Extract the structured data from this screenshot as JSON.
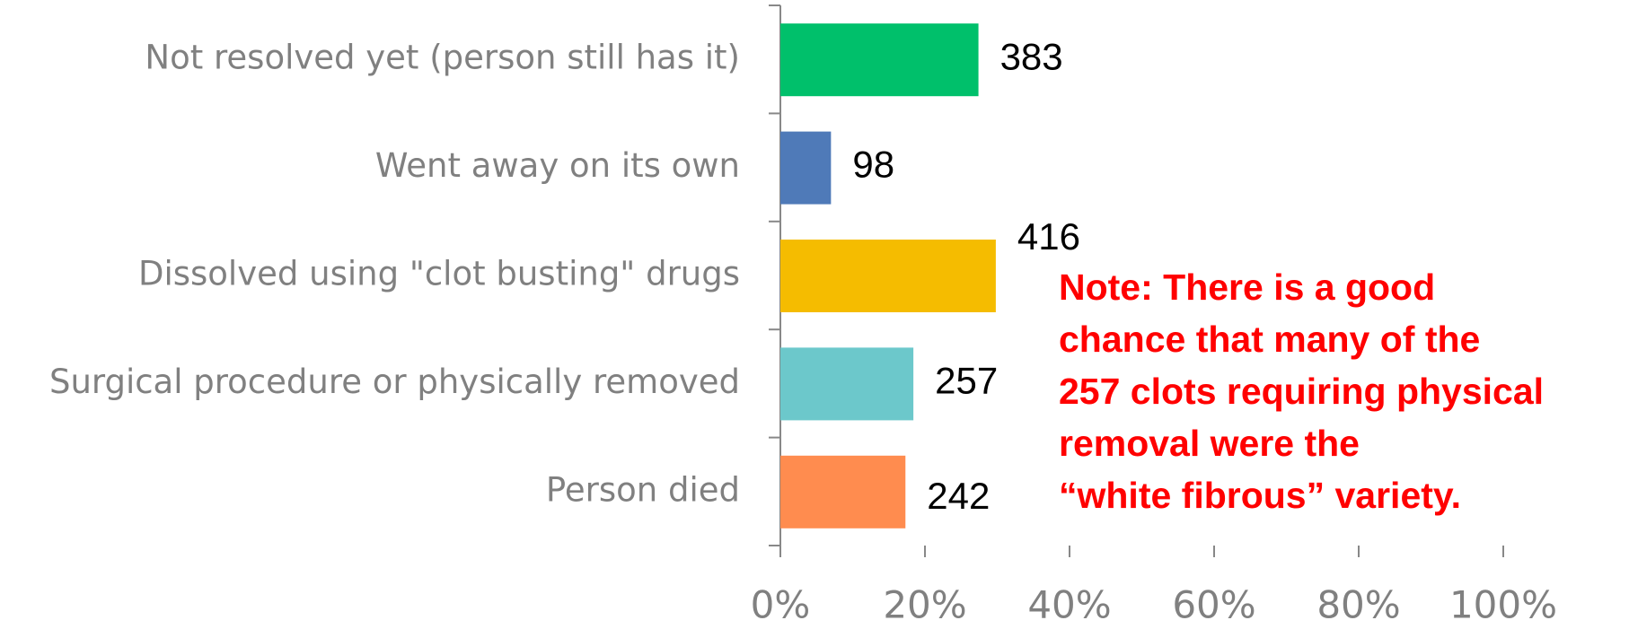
{
  "chart_data": {
    "type": "bar",
    "orientation": "horizontal",
    "categories": [
      "Not resolved yet (person still has it)",
      "Went away on its own",
      "Dissolved using \"clot busting\" drugs",
      "Surgical procedure or physically removed",
      "Person died"
    ],
    "values": [
      27.4,
      7.0,
      29.8,
      18.4,
      17.3
    ],
    "data_labels": [
      383,
      98,
      416,
      257,
      242
    ],
    "colors": [
      "#00c06b",
      "#4f7ab8",
      "#f5bc00",
      "#6cc8cb",
      "#ff8c4f"
    ],
    "xlim": [
      0,
      100
    ],
    "xticks": [
      {
        "value": 0,
        "label": "0%"
      },
      {
        "value": 20,
        "label": "20%"
      },
      {
        "value": 40,
        "label": "40%"
      },
      {
        "value": 60,
        "label": "60%"
      },
      {
        "value": 80,
        "label": "80%"
      },
      {
        "value": 100,
        "label": "100%"
      }
    ],
    "annotation": [
      "Note:  There is a good",
      "chance that many of the",
      "257 clots requiring physical",
      "removal were the",
      "“white fibrous” variety."
    ]
  }
}
